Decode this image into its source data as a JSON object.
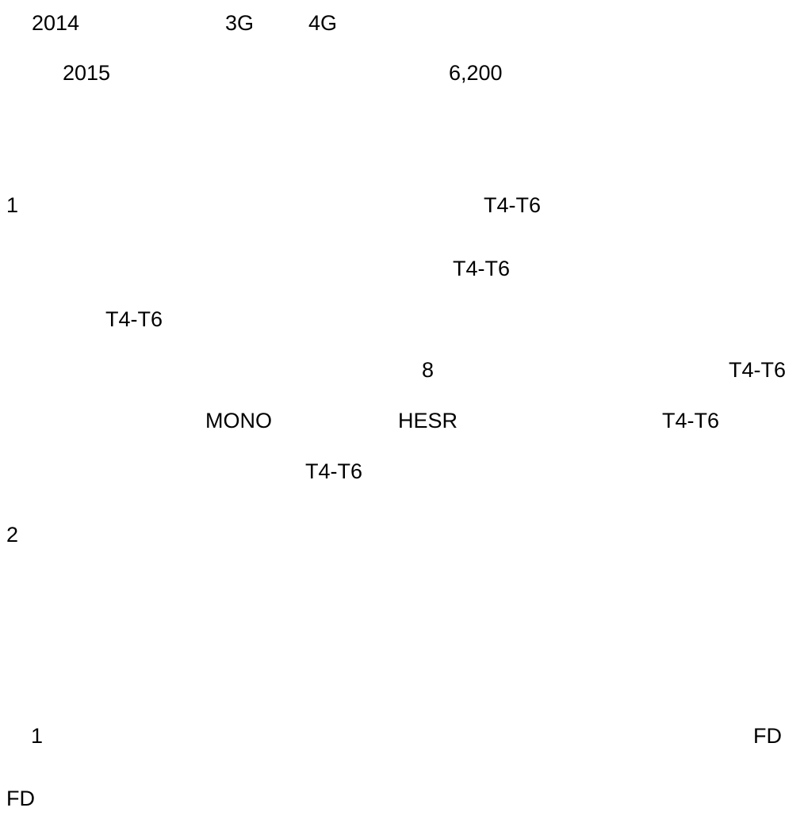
{
  "document": {
    "line1": {
      "year": "2014",
      "network_a": "3G",
      "network_b": "4G"
    },
    "line2": {
      "year": "2015",
      "amount": "6,200"
    },
    "section1": {
      "number": "1",
      "code_1": "T4-T6",
      "code_2": "T4-T6",
      "code_3": "T4-T6",
      "count": "8",
      "code_4": "T4-T6",
      "term_a": "MONO",
      "term_b": "HESR",
      "code_5": "T4-T6",
      "code_6": "T4-T6"
    },
    "section2": {
      "number": "2"
    },
    "item1": {
      "number": "1",
      "term_1": "FD",
      "term_2": "FD"
    }
  }
}
